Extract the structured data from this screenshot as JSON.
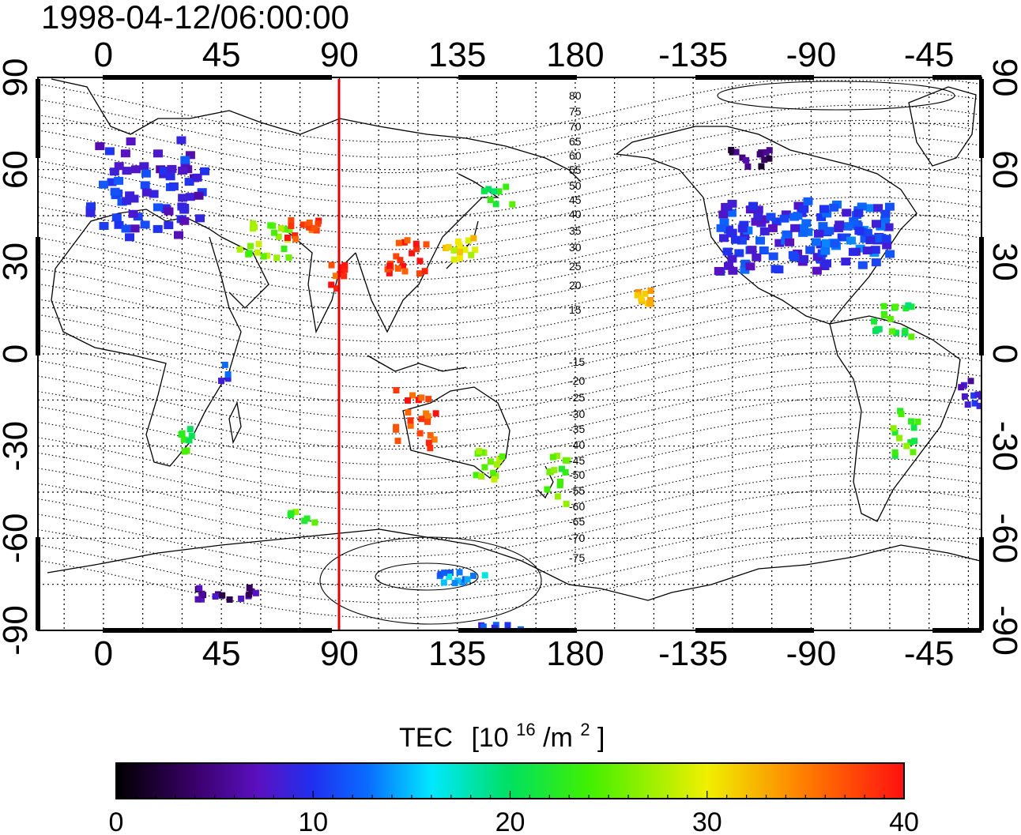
{
  "title": "1998-04-12/06:00:00",
  "top_axis_labels": [
    "0",
    "45",
    "90",
    "135",
    "180",
    "-135",
    "-90",
    "-45"
  ],
  "bottom_axis_labels": [
    "0",
    "45",
    "90",
    "135",
    "180",
    "-135",
    "-90",
    "-45"
  ],
  "left_axis_labels": [
    "90",
    "60",
    "30",
    "0",
    "-30",
    "-60",
    "-90"
  ],
  "right_axis_labels": [
    "90",
    "60",
    "30",
    "0",
    "-30",
    "-60",
    "-90"
  ],
  "magnetic_latitude_labels": [
    "80",
    "75",
    "70",
    "65",
    "60",
    "55",
    "50",
    "45",
    "40",
    "35",
    "30",
    "25",
    "20",
    "15",
    "-15",
    "-20",
    "-25",
    "-30",
    "-35",
    "-40",
    "-45",
    "-50",
    "-55",
    "-60",
    "-65",
    "-70",
    "-75"
  ],
  "colorbar": {
    "label": "TEC",
    "unit_prefix": "[10",
    "unit_exp": "16",
    "unit_mid": "/m",
    "unit_exp2": "2",
    "unit_suffix": "]",
    "ticks": [
      "0",
      "10",
      "20",
      "30",
      "40"
    ],
    "range": [
      0,
      40
    ],
    "colors": [
      "#000000",
      "#3a006a",
      "#5a10c0",
      "#2030f0",
      "#0a6dff",
      "#00e8ff",
      "#00e060",
      "#40f000",
      "#f0f000",
      "#ff8000",
      "#ff1010"
    ]
  },
  "marker_line": {
    "longitude": 90,
    "color": "#e00000"
  },
  "chart_data": {
    "type": "heatmap",
    "title": "1998-04-12/06:00:00",
    "x_axis": {
      "range": [
        -25,
        335
      ],
      "ticks": [
        0,
        45,
        90,
        135,
        180,
        225,
        270,
        315
      ]
    },
    "y_axis": {
      "range": [
        -90,
        90
      ],
      "ticks": [
        -90,
        -60,
        -30,
        0,
        30,
        60,
        90
      ]
    },
    "value_range": [
      0,
      40
    ],
    "regions": [
      {
        "lon": 15,
        "lat": 55,
        "tec": 9
      },
      {
        "lon": 60,
        "lat": 38,
        "tec": 26
      },
      {
        "lon": 75,
        "lat": 42,
        "tec": 38
      },
      {
        "lon": 88,
        "lat": 27,
        "tec": 38
      },
      {
        "lon": 115,
        "lat": 33,
        "tec": 39
      },
      {
        "lon": 135,
        "lat": 35,
        "tec": 30
      },
      {
        "lon": 150,
        "lat": 52,
        "tec": 22
      },
      {
        "lon": 118,
        "lat": -20,
        "tec": 38
      },
      {
        "lon": 145,
        "lat": -35,
        "tec": 26
      },
      {
        "lon": 172,
        "lat": -40,
        "tec": 24
      },
      {
        "lon": 205,
        "lat": 20,
        "tec": 32
      },
      {
        "lon": 255,
        "lat": 40,
        "tec": 10
      },
      {
        "lon": 285,
        "lat": 40,
        "tec": 11
      },
      {
        "lon": 300,
        "lat": 10,
        "tec": 22
      },
      {
        "lon": 305,
        "lat": -25,
        "tec": 24
      },
      {
        "lon": 330,
        "lat": -10,
        "tec": 8
      },
      {
        "lon": 30,
        "lat": -27,
        "tec": 22
      },
      {
        "lon": 45,
        "lat": -5,
        "tec": 11
      },
      {
        "lon": 75,
        "lat": -52,
        "tec": 25
      },
      {
        "lon": 45,
        "lat": -77,
        "tec": 5
      },
      {
        "lon": 135,
        "lat": -72,
        "tec": 14
      },
      {
        "lon": 150,
        "lat": -88,
        "tec": 11
      },
      {
        "lon": 245,
        "lat": 65,
        "tec": 4
      }
    ]
  }
}
